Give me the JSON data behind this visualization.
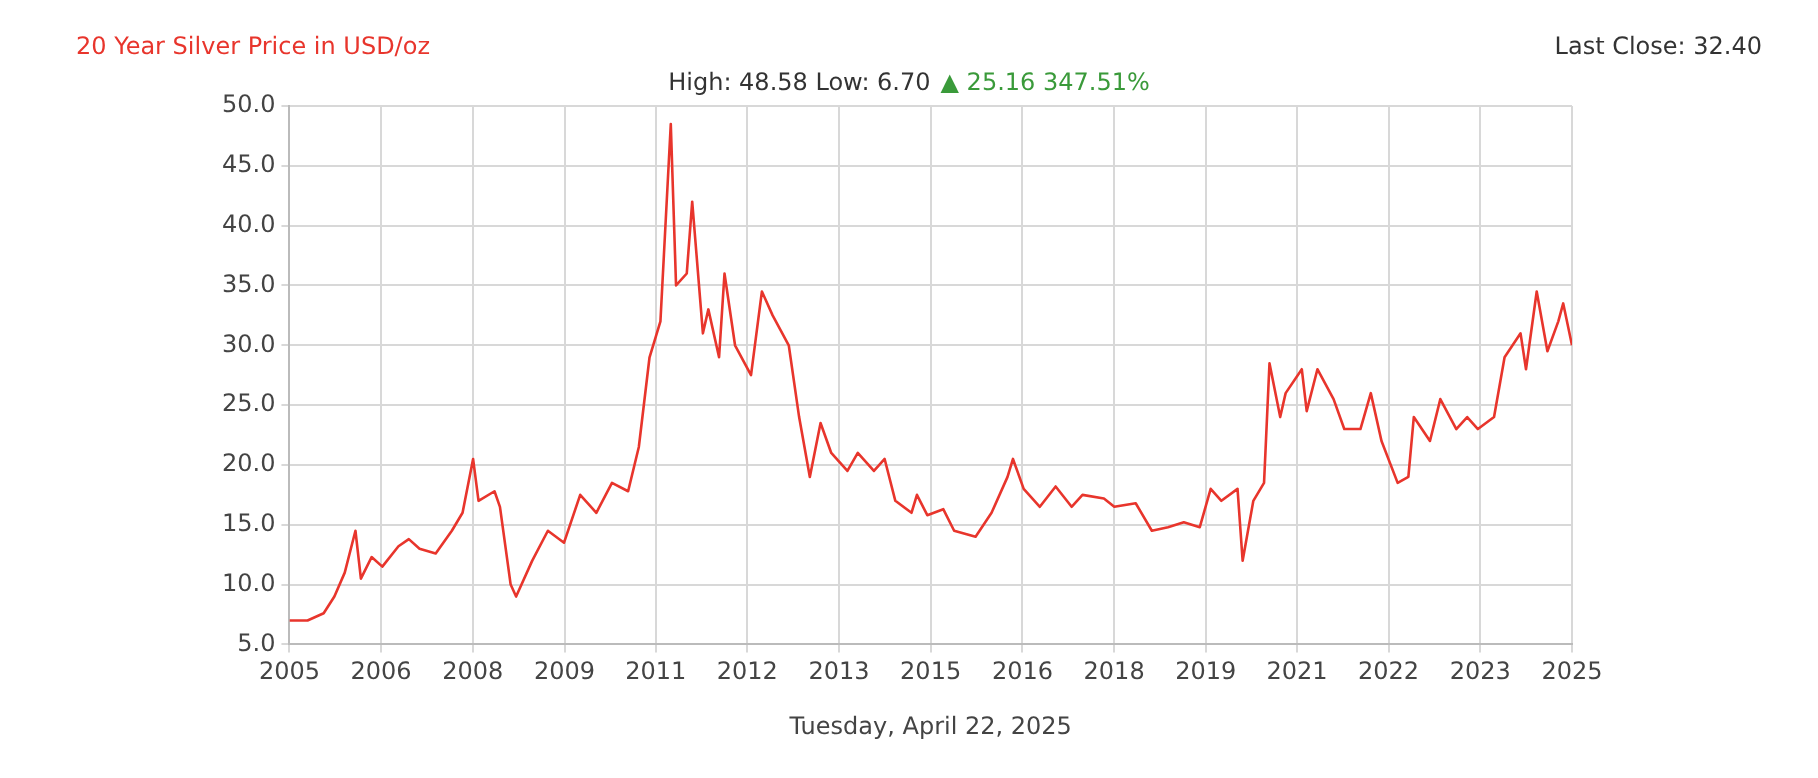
{
  "chart_data": {
    "type": "line",
    "title": "20 Year Silver Price in USD/oz",
    "subtitle": "High: 48.58 Low: 6.70",
    "annotations": [
      "▲ 25.16 347.51%",
      "Last Close: 32.40"
    ],
    "xlabel": "Tuesday, April 22, 2025",
    "x": [
      "2005-04-20",
      "2005-08",
      "2005-11",
      "2006-01",
      "2006-03",
      "2006-05",
      "2006-06",
      "2006-08",
      "2006-10",
      "2007-01",
      "2007-03",
      "2007-05",
      "2007-08",
      "2007-11",
      "2008-01",
      "2008-03",
      "2008-04",
      "2008-07",
      "2008-08",
      "2008-10",
      "2008-11",
      "2009-02",
      "2009-05",
      "2009-08",
      "2009-11",
      "2010-02",
      "2010-05",
      "2010-08",
      "2010-10",
      "2010-12",
      "2011-02",
      "2011-04",
      "2011-05",
      "2011-07",
      "2011-08",
      "2011-10",
      "2011-11",
      "2012-01",
      "2012-02",
      "2012-04",
      "2012-07",
      "2012-09",
      "2012-11",
      "2013-02",
      "2013-04",
      "2013-06",
      "2013-08",
      "2013-10",
      "2014-01",
      "2014-03",
      "2014-06",
      "2014-08",
      "2014-10",
      "2015-01",
      "2015-02",
      "2015-04",
      "2015-07",
      "2015-09",
      "2016-01",
      "2016-04",
      "2016-07",
      "2016-08",
      "2016-10",
      "2017-01",
      "2017-04",
      "2017-07",
      "2017-09",
      "2018-01",
      "2018-03",
      "2018-07",
      "2018-10",
      "2019-01",
      "2019-04",
      "2019-07",
      "2019-09",
      "2019-11",
      "2020-02",
      "2020-03",
      "2020-05",
      "2020-07",
      "2020-08",
      "2020-10",
      "2020-11",
      "2021-02",
      "2021-03",
      "2021-05",
      "2021-08",
      "2021-10",
      "2022-01",
      "2022-03",
      "2022-05",
      "2022-08",
      "2022-10",
      "2022-11",
      "2023-02",
      "2023-04",
      "2023-07",
      "2023-09",
      "2023-11",
      "2024-02",
      "2024-04",
      "2024-07",
      "2024-08",
      "2024-10",
      "2024-12",
      "2025-02",
      "2025-03",
      "2025-04-20"
    ],
    "series": [
      {
        "color": "#e8352c",
        "values": [
          7.0,
          7.0,
          7.6,
          9.0,
          11,
          14.5,
          10.5,
          12.3,
          11.5,
          13.2,
          13.8,
          13.0,
          12.6,
          14.5,
          16,
          20.5,
          17,
          17.8,
          16.5,
          10,
          9.0,
          12,
          14.5,
          13.5,
          17.5,
          16,
          18.5,
          17.8,
          21.5,
          29,
          32,
          48.5,
          35,
          36,
          42,
          31,
          33,
          29,
          36,
          30,
          27.5,
          34.5,
          32.5,
          30,
          24,
          19,
          23.5,
          21,
          19.5,
          21,
          19.5,
          20.5,
          17,
          16,
          17.5,
          15.8,
          16.3,
          14.5,
          14,
          16,
          19,
          20.5,
          18,
          16.5,
          18.2,
          16.5,
          17.5,
          17.2,
          16.5,
          16.8,
          14.5,
          14.8,
          15.2,
          14.8,
          18,
          17,
          18,
          12,
          17,
          18.5,
          28.5,
          24,
          26,
          28,
          24.5,
          28,
          25.5,
          23,
          23,
          26,
          22,
          18.5,
          19,
          24,
          22,
          25.5,
          23,
          24,
          23,
          24,
          29,
          31,
          28,
          34.5,
          29.5,
          32,
          33.5,
          30
        ]
      }
    ],
    "xlim": [
      "2005-04-20",
      "2025-04-20"
    ],
    "xticks": [
      {
        "value": "2005-04-20",
        "label": "2005"
      },
      {
        "value": "2006-09-24",
        "label": "2006"
      },
      {
        "value": "2008-02-28",
        "label": "2008"
      },
      {
        "value": "2009-08-04",
        "label": "2009"
      },
      {
        "value": "2011-01-05",
        "label": "2011"
      },
      {
        "value": "2012-06-10",
        "label": "2012"
      },
      {
        "value": "2013-11-14",
        "label": "2013"
      },
      {
        "value": "2015-04-20",
        "label": "2015"
      },
      {
        "value": "2016-09-24",
        "label": "2016"
      },
      {
        "value": "2018-02-28",
        "label": "2018"
      },
      {
        "value": "2019-08-04",
        "label": "2019"
      },
      {
        "value": "2021-01-05",
        "label": "2021"
      },
      {
        "value": "2022-06-10",
        "label": "2022"
      },
      {
        "value": "2023-11-14",
        "label": "2023"
      },
      {
        "value": "2025-04-20",
        "label": "2025"
      }
    ],
    "ylim": [
      5,
      50
    ],
    "yticks": [
      {
        "value": 5,
        "label": "5.0"
      },
      {
        "value": 10,
        "label": "10.0"
      },
      {
        "value": 15,
        "label": "15.0"
      },
      {
        "value": 20,
        "label": "20.0"
      },
      {
        "value": 25,
        "label": "25.0"
      },
      {
        "value": 30,
        "label": "30.0"
      },
      {
        "value": 35,
        "label": "35.0"
      },
      {
        "value": 40,
        "label": "40.0"
      },
      {
        "value": 45,
        "label": "45.0"
      },
      {
        "value": 50,
        "label": "50.0"
      }
    ],
    "grid": true,
    "marker": "none",
    "line_style": "solid"
  }
}
